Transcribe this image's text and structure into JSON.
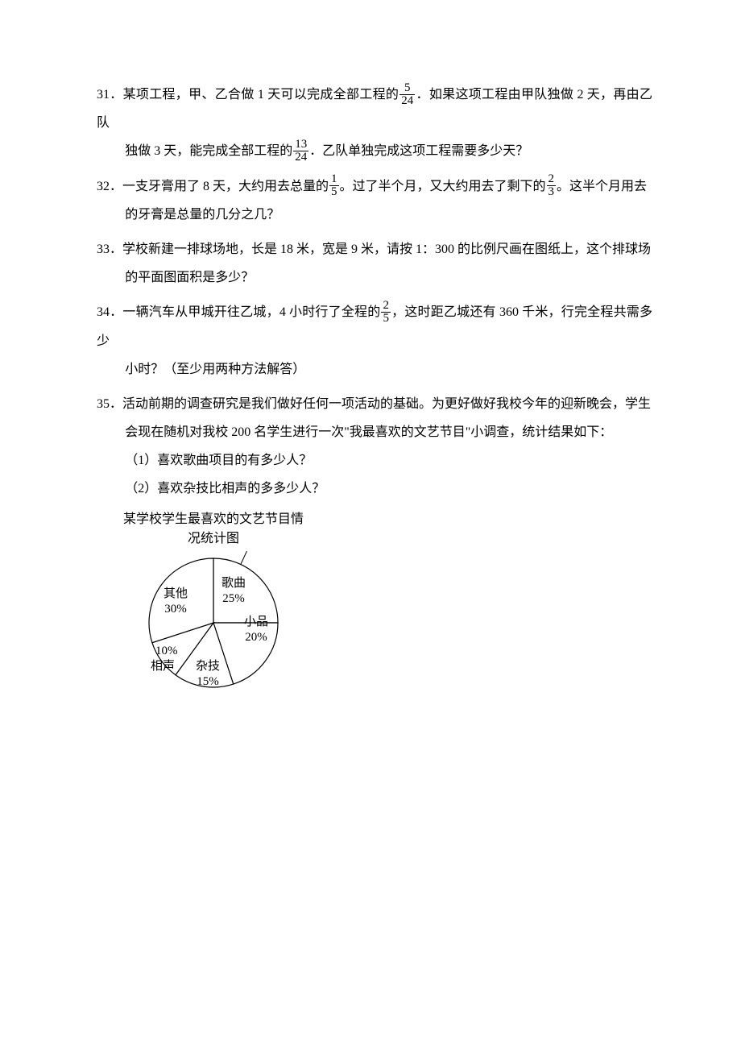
{
  "q31": {
    "part1": "31．某项工程，甲、乙合做 1 天可以完成全部工程的",
    "frac1_num": "5",
    "frac1_den": "24",
    "part2": "．如果这项工程由甲队独做 2 天，再由乙队",
    "part3": "独做 3 天，能完成全部工程的",
    "frac2_num": "13",
    "frac2_den": "24",
    "part4": "．乙队单独完成这项工程需要多少天？"
  },
  "q32": {
    "part1": "32．一支牙膏用了 8 天，大约用去总量的",
    "frac1_num": "1",
    "frac1_den": "5",
    "part2": "。过了半个月，又大约用去了剩下的",
    "frac2_num": "2",
    "frac2_den": "3",
    "part3": "。这半个月用去",
    "part4": "的牙膏是总量的几分之几？"
  },
  "q33": {
    "line1": "33．学校新建一排球场地，长是 18 米，宽是 9 米，请按 1：300 的比例尺画在图纸上，这个排球场",
    "line2": "的平面图面积是多少？"
  },
  "q34": {
    "part1": "34．一辆汽车从甲城开往乙城，4 小时行了全程的",
    "frac_num": "2",
    "frac_den": "5",
    "part2": "，这时距乙城还有 360 千米，行完全程共需多少",
    "part3": "小时？（至少用两种方法解答）"
  },
  "q35": {
    "line1": "35．活动前期的调查研究是我们做好任何一项活动的基础。为更好做好我校今年的迎新晚会，学生",
    "line2": "会现在随机对我校 200 名学生进行一次\"我最喜欢的文艺节目\"小调查，统计结果如下：",
    "sub1": "（1）喜欢歌曲项目的有多少人？",
    "sub2": "（2）喜欢杂技比相声的多多少人？"
  },
  "chart": {
    "title_line1": "某学校学生最喜欢的文艺节目情",
    "title_line2": "况统计图",
    "slices": {
      "song": {
        "label": "歌曲",
        "value": "25%",
        "angle_start": -90,
        "angle_end": 0,
        "color": "#ffffff"
      },
      "sketch": {
        "label": "小品",
        "value": "20%",
        "angle_start": 0,
        "angle_end": 72,
        "color": "#ffffff"
      },
      "acro": {
        "label": "杂技",
        "value": "15%",
        "angle_start": 72,
        "angle_end": 126,
        "color": "#ffffff"
      },
      "cross": {
        "label": "相声",
        "value": "10%",
        "angle_start": 126,
        "angle_end": 162,
        "color": "#ffffff"
      },
      "other": {
        "label": "其他",
        "value": "30%",
        "angle_start": 162,
        "angle_end": 270,
        "color": "#ffffff"
      }
    },
    "stroke_color": "#000000",
    "background_color": "#ffffff",
    "radius": 80
  }
}
